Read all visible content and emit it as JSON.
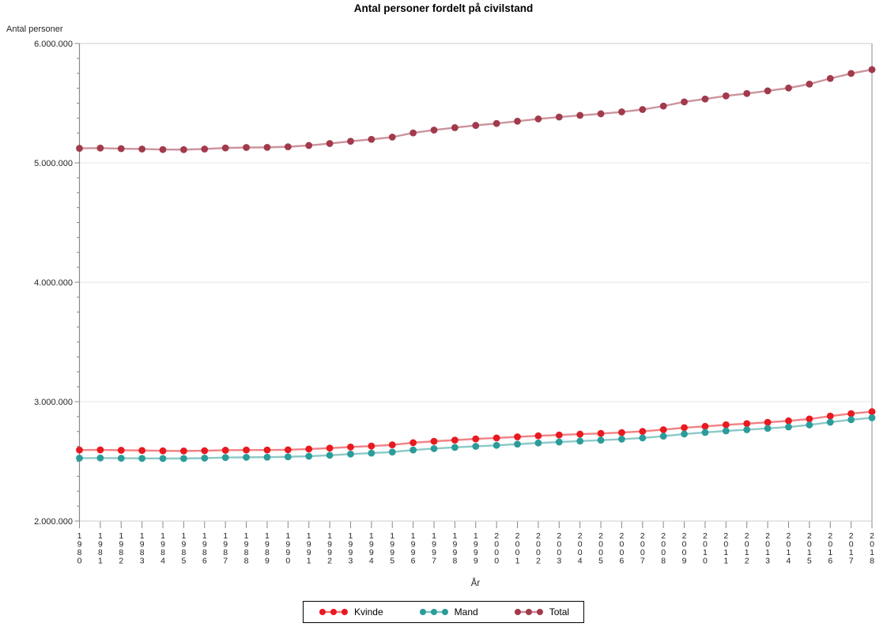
{
  "chart_data": {
    "type": "line",
    "title": "Antal personer fordelt på civilstand",
    "xlabel": "År",
    "ylabel": "Antal personer",
    "grid": "horizontal-major",
    "legend_position": "bottom-center",
    "x_tick_label_orientation": "vertical-stacked",
    "ylim": [
      2000000,
      6000000
    ],
    "y_major_tick_interval": 1000000,
    "y_minor_ticks_per_interval": 7,
    "y_tick_labels": [
      "2.000.000",
      "3.000.000",
      "4.000.000",
      "5.000.000",
      "6.000.000"
    ],
    "categories": [
      "1980",
      "1981",
      "1982",
      "1983",
      "1984",
      "1985",
      "1986",
      "1987",
      "1988",
      "1989",
      "1990",
      "1991",
      "1992",
      "1993",
      "1994",
      "1995",
      "1996",
      "1997",
      "1998",
      "1999",
      "2000",
      "2001",
      "2002",
      "2003",
      "2004",
      "2005",
      "2006",
      "2007",
      "2008",
      "2009",
      "2010",
      "2011",
      "2012",
      "2013",
      "2014",
      "2015",
      "2016",
      "2017",
      "2018"
    ],
    "series": [
      {
        "name": "Kvinde",
        "color": "#e8191f",
        "values": [
          2595000,
          2596000,
          2593000,
          2591000,
          2588000,
          2587000,
          2589000,
          2593000,
          2595000,
          2595000,
          2597000,
          2603000,
          2611000,
          2620000,
          2628000,
          2638000,
          2656000,
          2668000,
          2678000,
          2688000,
          2696000,
          2705000,
          2714000,
          2721000,
          2728000,
          2734000,
          2741000,
          2751000,
          2765000,
          2782000,
          2793000,
          2806000,
          2816000,
          2827000,
          2839000,
          2855000,
          2879000,
          2900000,
          2916000
        ]
      },
      {
        "name": "Mand",
        "color": "#2b9c99",
        "values": [
          2527000,
          2528000,
          2526000,
          2525000,
          2524000,
          2524000,
          2527000,
          2532000,
          2534000,
          2535000,
          2538000,
          2543000,
          2551000,
          2561000,
          2569000,
          2578000,
          2595000,
          2607000,
          2617000,
          2626000,
          2634000,
          2644000,
          2654000,
          2662000,
          2670000,
          2677000,
          2686000,
          2696000,
          2711000,
          2729000,
          2742000,
          2755000,
          2765000,
          2776000,
          2788000,
          2805000,
          2828000,
          2849000,
          2865000
        ]
      },
      {
        "name": "Total",
        "color": "#a23a4c",
        "values": [
          5122000,
          5124000,
          5119000,
          5116000,
          5112000,
          5111000,
          5116000,
          5125000,
          5129000,
          5130000,
          5135000,
          5146000,
          5162000,
          5181000,
          5197000,
          5216000,
          5251000,
          5275000,
          5295000,
          5314000,
          5330000,
          5349000,
          5368000,
          5384000,
          5398000,
          5411000,
          5427000,
          5447000,
          5476000,
          5511000,
          5535000,
          5561000,
          5581000,
          5603000,
          5627000,
          5660000,
          5707000,
          5749000,
          5781000
        ]
      }
    ],
    "colors": {
      "axis_line": "#85898f",
      "frame_line": "#c9ccd1",
      "right_frame_line": "#9aa0a6",
      "gridline": "#e4e5e8",
      "tick_text": "#262626"
    }
  }
}
